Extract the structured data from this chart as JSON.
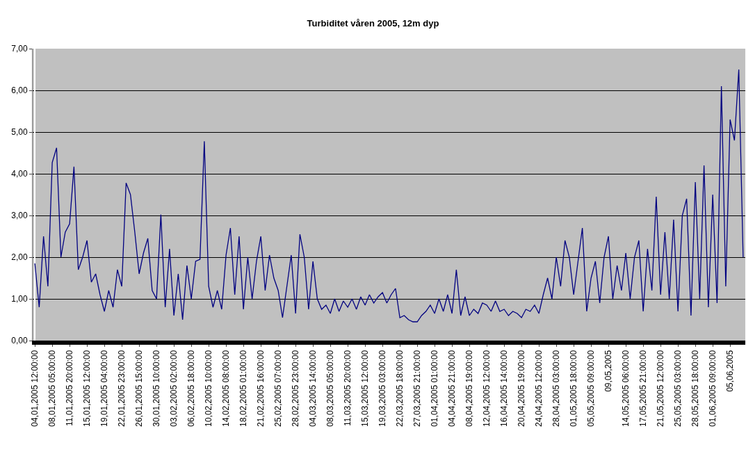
{
  "chart_data": {
    "type": "line",
    "title": "Turbiditet våren 2005, 12m dyp",
    "categories": [
      "04,01,2005 12:00:00",
      null,
      null,
      null,
      "08,01,2005 05:00:00",
      null,
      null,
      null,
      "11,01,2005 20:00:00",
      null,
      null,
      null,
      "15,01,2005 12:00:00",
      null,
      null,
      null,
      "19,01,2005 04:00:00",
      null,
      null,
      null,
      "22,01,2005 23:00:00",
      null,
      null,
      null,
      "26,01,2005 15:00:00",
      null,
      null,
      null,
      "30,01,2005 10:00:00",
      null,
      null,
      null,
      "03,02,2005 02:00:00",
      null,
      null,
      null,
      "06,02,2005 18:00:00",
      null,
      null,
      null,
      "10,02,2005 10:00:00",
      null,
      null,
      null,
      "14,02,2005 08:00:00",
      null,
      null,
      null,
      "18,02,2005 01:00:00",
      null,
      null,
      null,
      "21,02,2005 16:00:00",
      null,
      null,
      null,
      "25,02,2005 07:00:00",
      null,
      null,
      null,
      "28,02,2005 23:00:00",
      null,
      null,
      null,
      "04,03,2005 14:00:00",
      null,
      null,
      null,
      "08,03,2005 05:00:00",
      null,
      null,
      null,
      "11,03,2005 20:00:00",
      null,
      null,
      null,
      "15,03,2005 12:00:00",
      null,
      null,
      null,
      "19,03,2005 03:00:00",
      null,
      null,
      null,
      "22,03,2005 18:00:00",
      null,
      null,
      null,
      "27,03,2005 21:00:00",
      null,
      null,
      null,
      "01,04,2005 01:00:00",
      null,
      null,
      null,
      "04,04,2005 21:00:00",
      null,
      null,
      null,
      "08,04,2005 19:00:00",
      null,
      null,
      null,
      "12,04,2005 12:00:00",
      null,
      null,
      null,
      "16,04,2005 14:00:00",
      null,
      null,
      null,
      "20,04,2005 19:00:00",
      null,
      null,
      null,
      "24,04,2005 12:00:00",
      null,
      null,
      null,
      "28,04,2005 03:00:00",
      null,
      null,
      null,
      "01,05,2005 18:00:00",
      null,
      null,
      null,
      "05,05,2005 09:00:00",
      null,
      null,
      null,
      "09,05,2005",
      null,
      null,
      null,
      "14,05,2005 06:00:00",
      null,
      null,
      null,
      "17,05,2005 21:00:00",
      null,
      null,
      null,
      "21,05,2005 12:00:00",
      null,
      null,
      null,
      "25,05,2005 03:00:00",
      null,
      null,
      null,
      "28,05,2005 18:00:00",
      null,
      null,
      null,
      "01,06,2005 09:00:00",
      null,
      null,
      null,
      "05,06,2005",
      null,
      null,
      null
    ],
    "series": [
      {
        "color": "#000080",
        "values": [
          1.85,
          0.8,
          2.5,
          1.3,
          4.27,
          4.62,
          2.0,
          2.6,
          2.8,
          4.17,
          1.7,
          2.0,
          2.4,
          1.4,
          1.6,
          1.1,
          0.7,
          1.2,
          0.8,
          1.7,
          1.3,
          3.78,
          3.5,
          2.6,
          1.6,
          2.1,
          2.45,
          1.2,
          1.0,
          3.02,
          0.8,
          2.2,
          0.6,
          1.6,
          0.5,
          1.8,
          1.0,
          1.9,
          1.95,
          4.78,
          1.3,
          0.8,
          1.2,
          0.75,
          2.05,
          2.7,
          1.1,
          2.5,
          0.75,
          2.0,
          1.0,
          1.9,
          2.5,
          1.2,
          2.05,
          1.5,
          1.2,
          0.55,
          1.3,
          2.05,
          0.65,
          2.55,
          2.0,
          0.75,
          1.9,
          1.0,
          0.75,
          0.85,
          0.65,
          1.0,
          0.7,
          0.95,
          0.8,
          1.0,
          0.75,
          1.05,
          0.85,
          1.1,
          0.9,
          1.05,
          1.15,
          0.9,
          1.1,
          1.25,
          0.55,
          0.6,
          0.5,
          0.45,
          0.45,
          0.6,
          0.7,
          0.85,
          0.65,
          1.0,
          0.7,
          1.1,
          0.65,
          1.7,
          0.6,
          1.05,
          0.6,
          0.75,
          0.65,
          0.9,
          0.85,
          0.7,
          0.95,
          0.7,
          0.75,
          0.6,
          0.7,
          0.65,
          0.55,
          0.75,
          0.7,
          0.85,
          0.65,
          1.1,
          1.5,
          1.0,
          2.0,
          1.3,
          2.4,
          2.0,
          1.1,
          1.9,
          2.7,
          0.7,
          1.5,
          1.9,
          0.9,
          2.0,
          2.5,
          1.0,
          1.8,
          1.2,
          2.1,
          1.0,
          2.0,
          2.4,
          0.7,
          2.2,
          1.2,
          3.45,
          1.1,
          2.6,
          1.0,
          2.9,
          0.7,
          3.0,
          3.4,
          0.6,
          3.8,
          1.0,
          4.2,
          0.8,
          3.5,
          0.9,
          6.1,
          1.3,
          5.3,
          4.8,
          6.5,
          2.0
        ]
      }
    ],
    "ylim": [
      0,
      7
    ],
    "yticks": [
      {
        "value": 0,
        "label": "0,00"
      },
      {
        "value": 1,
        "label": "1,00"
      },
      {
        "value": 2,
        "label": "2,00"
      },
      {
        "value": 3,
        "label": "3,00"
      },
      {
        "value": 4,
        "label": "4,00"
      },
      {
        "value": 5,
        "label": "5,00"
      },
      {
        "value": 6,
        "label": "6,00"
      },
      {
        "value": 7,
        "label": "7,00"
      }
    ],
    "grid": "y",
    "marker": "none",
    "line_style": "solid"
  }
}
